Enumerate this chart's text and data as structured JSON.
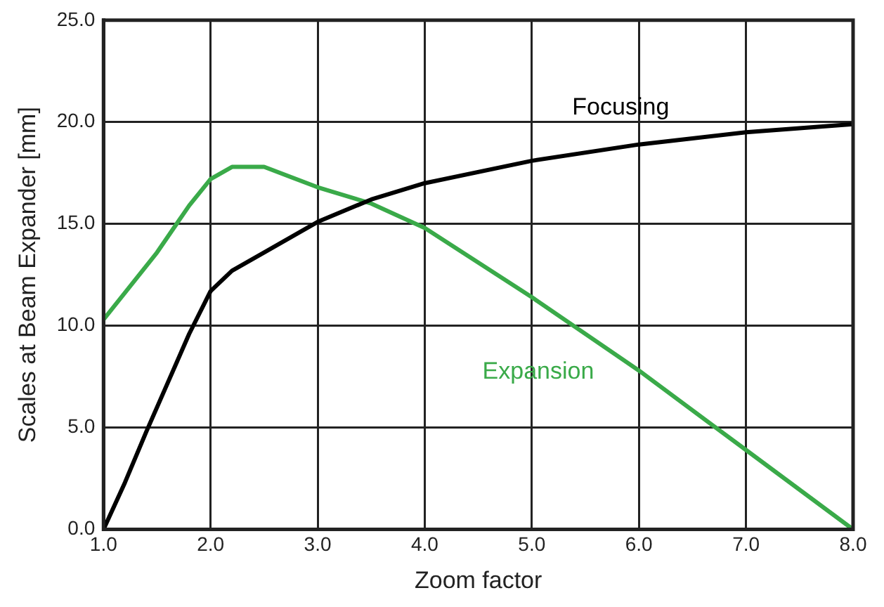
{
  "chart_data": {
    "type": "line",
    "xlabel": "Zoom factor",
    "ylabel": "Scales at Beam Expander [mm]",
    "xlim": [
      1,
      8
    ],
    "xticks": [
      {
        "value": 1,
        "label": "1.0"
      },
      {
        "value": 2,
        "label": "2.0"
      },
      {
        "value": 3,
        "label": "3.0"
      },
      {
        "value": 4,
        "label": "4.0"
      },
      {
        "value": 5,
        "label": "5.0"
      },
      {
        "value": 6,
        "label": "6.0"
      },
      {
        "value": 7,
        "label": "7.0"
      },
      {
        "value": 8,
        "label": "8.0"
      }
    ],
    "ylim": [
      0,
      25
    ],
    "yticks": [
      {
        "value": 0,
        "label": "0.0"
      },
      {
        "value": 5,
        "label": "5.0"
      },
      {
        "value": 10,
        "label": "10.0"
      },
      {
        "value": 15,
        "label": "15.0"
      },
      {
        "value": 20,
        "label": "20.0"
      },
      {
        "value": 25,
        "label": "25.0"
      }
    ],
    "grid": true,
    "legend": false,
    "marker": "none",
    "line_style": "solid",
    "series": [
      {
        "name": "Focusing",
        "color": "#000000",
        "x": [
          1,
          1.2,
          1.4,
          1.6,
          1.8,
          2.0,
          2.2,
          2.5,
          3.0,
          3.5,
          4.0,
          5.0,
          6.0,
          7.0,
          8.0
        ],
        "values": [
          0,
          2.3,
          4.8,
          7.2,
          9.6,
          11.7,
          12.7,
          13.6,
          15.1,
          16.2,
          17.0,
          18.1,
          18.9,
          19.5,
          19.9
        ]
      },
      {
        "name": "Expansion",
        "color": "#3aaa49",
        "x": [
          1,
          1.5,
          1.8,
          2.0,
          2.2,
          2.5,
          3.0,
          3.5,
          4.0,
          5.0,
          6.0,
          7.0,
          8.0
        ],
        "values": [
          10.3,
          13.6,
          15.9,
          17.2,
          17.8,
          17.8,
          16.8,
          16.0,
          14.8,
          11.4,
          7.8,
          3.9,
          0
        ]
      }
    ]
  }
}
